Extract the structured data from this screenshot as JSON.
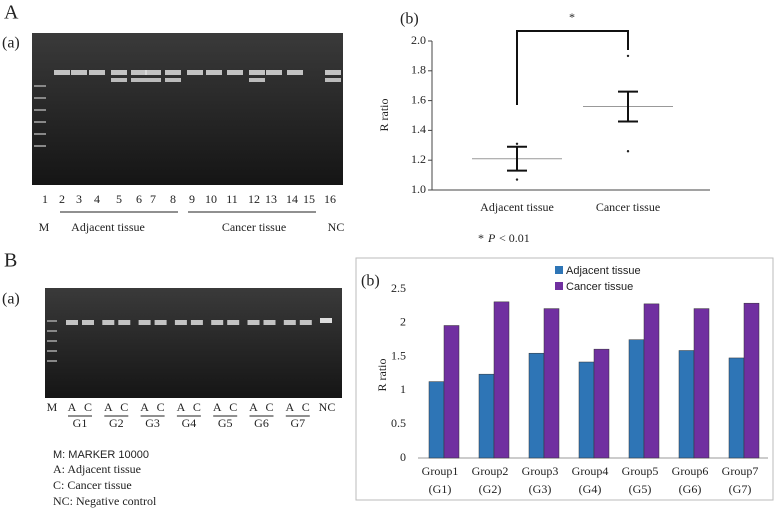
{
  "panel_labels": [
    "A",
    "B"
  ],
  "gel_a": {
    "label": "(a)",
    "lanes": [
      "1",
      "2",
      "3",
      "4",
      "5",
      "6",
      "7",
      "8",
      "9",
      "10",
      "11",
      "12",
      "13",
      "14",
      "15",
      "16"
    ],
    "marker": "M",
    "groups": [
      "Adjacent tissue",
      "Cancer tissue"
    ],
    "nc": "NC"
  },
  "gel_b": {
    "label": "(a)",
    "marker": "M",
    "lane_pairs": [
      "A",
      "C"
    ],
    "groups": [
      "G1",
      "G2",
      "G3",
      "G4",
      "G5",
      "G6",
      "G7"
    ],
    "nc": "NC"
  },
  "key": [
    "M: MARKER 10000",
    "A: Adjacent tissue",
    "C: Cancer tissue",
    "NC: Negative control"
  ],
  "chart_data": [
    {
      "type": "errorbar",
      "label": "(b)",
      "ylabel": "R ratio",
      "categories": [
        "Adjacent tissue",
        "Cancer tissue"
      ],
      "values": [
        1.21,
        1.56
      ],
      "errors": [
        0.08,
        0.1
      ],
      "points": [
        [
          1.31,
          1.07
        ],
        [
          1.9,
          1.26
        ]
      ],
      "ylim": [
        1.0,
        2.0
      ],
      "yticks": [
        {
          "value": 1.0,
          "label": "1.0"
        },
        {
          "value": 1.2,
          "label": "1.2"
        },
        {
          "value": 1.4,
          "label": "1.4"
        },
        {
          "value": 1.6,
          "label": "1.6"
        },
        {
          "value": 1.8,
          "label": "1.8"
        },
        {
          "value": 2.0,
          "label": "2.0"
        }
      ],
      "significance": "*",
      "footnote": [
        "*",
        "P",
        "< 0.01"
      ],
      "color": "#222222"
    },
    {
      "type": "bar",
      "label": "(b)",
      "ylabel": "R ratio",
      "categories": [
        "Group1",
        "Group2",
        "Group3",
        "Group4",
        "Group5",
        "Group6",
        "Group7"
      ],
      "category_sublabels": [
        "(G1)",
        "(G2)",
        "(G3)",
        "(G4)",
        "(G5)",
        "(G6)",
        "(G7)"
      ],
      "series": [
        {
          "name": "Adjacent tissue",
          "color": "#2e75b6",
          "values": [
            1.13,
            1.24,
            1.55,
            1.42,
            1.75,
            1.59,
            1.48
          ]
        },
        {
          "name": "Cancer tissue",
          "color": "#7030a0",
          "values": [
            1.96,
            2.31,
            2.21,
            1.61,
            2.28,
            2.21,
            2.29
          ]
        }
      ],
      "ylim": [
        0,
        2.5
      ],
      "yticks": [
        0,
        0.5,
        1,
        1.5,
        2,
        2.5
      ]
    }
  ]
}
